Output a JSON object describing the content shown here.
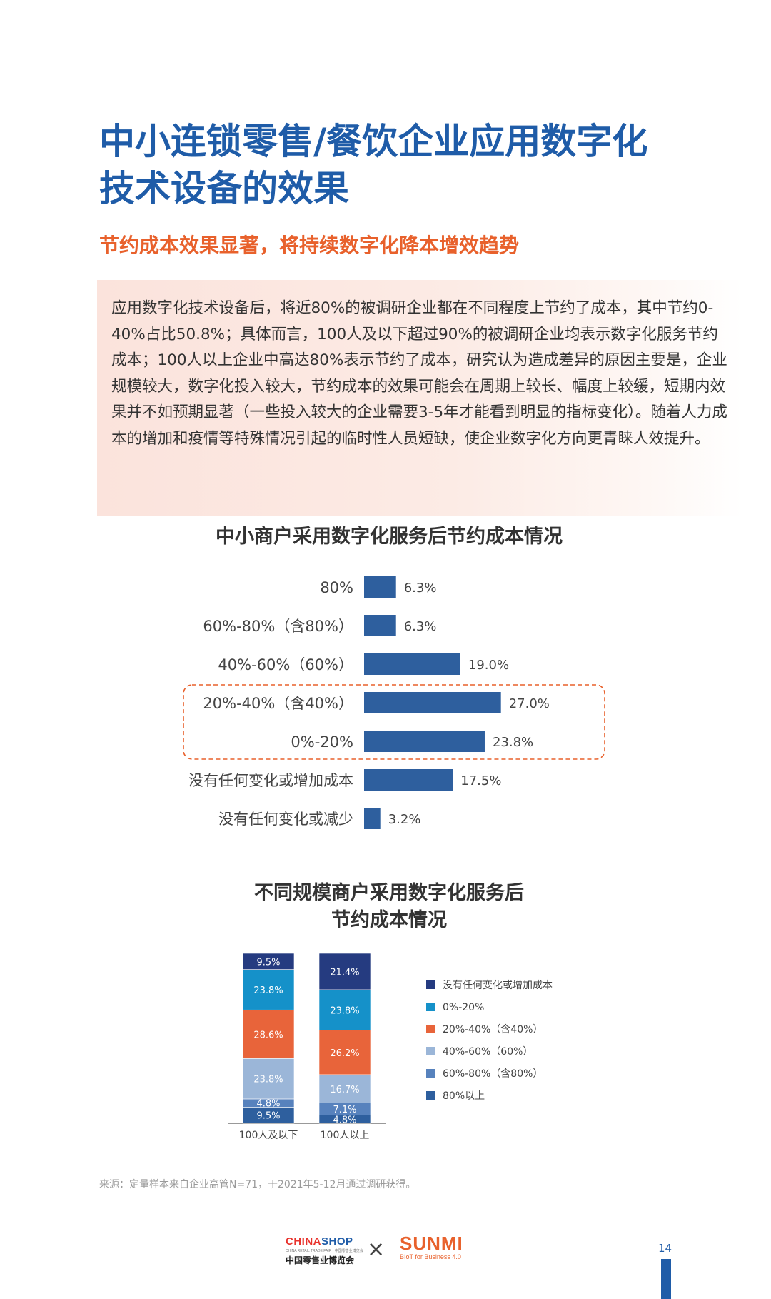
{
  "header": {
    "title_line1": "中小连锁零售/餐饮企业应用数字化",
    "title_line2": "技术设备的效果",
    "subtitle": "节约成本效果显著，将持续数字化降本增效趋势"
  },
  "summary": {
    "text": "应用数字化技术设备后，将近80%的被调研企业都在不同程度上节约了成本，其中节约0-40%占比50.8%；具体而言，100人及以下超过90%的被调研企业均表示数字化服务节约成本；100人以上企业中高达80%表示节约了成本，研究认为造成差异的原因主要是，企业规模较大，数字化投入较大，节约成本的效果可能会在周期上较长、幅度上较缓，短期内效果并不如预期显著（一些投入较大的企业需要3-5年才能看到明显的指标变化）。随着人力成本的增加和疫情等特殊情况引起的临时性人员短缺，使企业数字化方向更青睐人效提升。"
  },
  "chart1": {
    "title": "中小商户采用数字化服务后节约成本情况"
  },
  "chart2": {
    "title_line1": "不同规模商户采用数字化服务后",
    "title_line2": "节约成本情况"
  },
  "chart_data": [
    {
      "type": "bar",
      "orientation": "horizontal",
      "title": "中小商户采用数字化服务后节约成本情况",
      "categories": [
        "80%",
        "60%-80%（含80%）",
        "40%-60%（60%）",
        "20%-40%（含40%）",
        "0%-20%",
        "没有任何变化或增加成本",
        "没有任何变化或减少"
      ],
      "values": [
        6.3,
        6.3,
        19.0,
        27.0,
        23.8,
        17.5,
        3.2
      ],
      "value_labels": [
        "6.3%",
        "6.3%",
        "19.0%",
        "27.0%",
        "23.8%",
        "17.5%",
        "3.2%"
      ],
      "highlighted": [
        "20%-40%（含40%）",
        "0%-20%"
      ],
      "color": "#2e5f9e",
      "highlight_color": "#e8612c",
      "grid": false
    },
    {
      "type": "bar",
      "stacked": true,
      "title": "不同规模商户采用数字化服务后节约成本情况",
      "categories": [
        "100人及以下",
        "100人以上"
      ],
      "legend_position": "right",
      "grid": false,
      "series": [
        {
          "name": "80%以上",
          "color": "#2e5f9e",
          "values": [
            9.5,
            4.8
          ],
          "labels": [
            "9.5%",
            "4.8%"
          ]
        },
        {
          "name": "60%-80%（含80%）",
          "color": "#5782bd",
          "values": [
            4.8,
            7.1
          ],
          "labels": [
            "4.8%",
            "7.1%"
          ]
        },
        {
          "name": "40%-60%（60%）",
          "color": "#9bb6d8",
          "values": [
            23.8,
            16.7
          ],
          "labels": [
            "23.8%",
            "16.7%"
          ]
        },
        {
          "name": "20%-40%（含40%）",
          "color": "#e8643a",
          "values": [
            28.6,
            26.2
          ],
          "labels": [
            "28.6%",
            "26.2%"
          ]
        },
        {
          "name": "0%-20%",
          "color": "#1591c9",
          "values": [
            23.8,
            23.8
          ],
          "labels": [
            "23.8%",
            "23.8%"
          ]
        },
        {
          "name": "没有任何变化或增加成本",
          "color": "#253b80",
          "values": [
            9.5,
            21.4
          ],
          "labels": [
            "9.5%",
            "21.4%"
          ]
        }
      ],
      "legend_order": [
        "没有任何变化或增加成本",
        "0%-20%",
        "20%-40%（含40%）",
        "40%-60%（60%）",
        "60%-80%（含80%）",
        "80%以上"
      ]
    }
  ],
  "source": "来源：定量样本来自企业高管N=71，于2021年5-12月通过调研获得。",
  "footer": {
    "chinashop_part1": "CHINA",
    "chinashop_part2": "SHOP",
    "chinashop_fine": "CHINA RETAIL TRADE FAIR · 中国零售业博览会",
    "chinashop_cn": "中国零售业博览会",
    "cross": "×",
    "sunmi": "SUNMI",
    "sunmi_tag": "BIoT for Business 4.0",
    "page": "14"
  }
}
